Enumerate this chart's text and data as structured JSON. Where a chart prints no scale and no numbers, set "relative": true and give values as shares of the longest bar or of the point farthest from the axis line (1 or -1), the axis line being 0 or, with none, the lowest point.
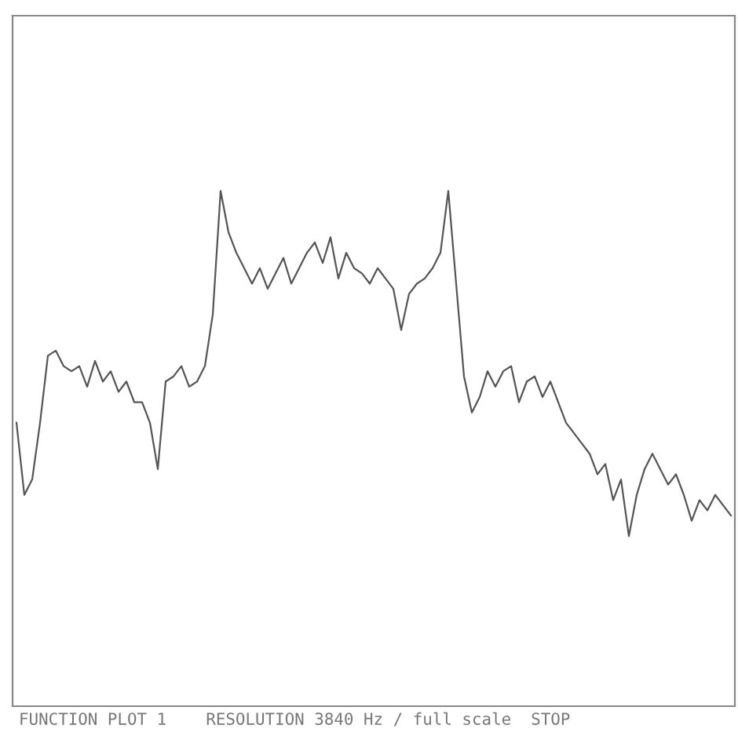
{
  "chart_data": {
    "type": "line",
    "relative": true,
    "legend": false,
    "annotations": [
      "FUNCTION PLOT 1    RESOLUTION 3840 Hz / full scale  STOP"
    ],
    "categories": [
      null,
      null,
      null,
      null,
      null,
      null,
      null,
      null,
      null,
      null,
      null,
      null,
      null,
      null,
      null,
      null,
      null,
      null,
      null,
      null,
      null,
      null,
      null,
      null,
      null,
      null,
      null,
      null,
      null,
      null,
      null,
      null,
      null,
      null,
      null,
      null,
      null,
      null,
      null,
      null,
      null,
      null,
      null,
      null,
      null,
      null,
      null,
      null,
      null,
      null,
      null,
      null,
      null,
      null,
      null,
      null,
      null,
      null,
      null,
      null,
      null,
      null,
      null,
      null,
      null,
      null,
      null,
      null,
      null,
      null,
      null,
      null,
      null,
      null,
      null,
      null,
      null,
      null,
      null,
      null,
      null,
      null,
      null,
      null,
      null,
      null,
      null,
      null,
      null,
      null,
      null,
      null
    ],
    "series": [
      {
        "color": "#555555",
        "values": [
          0.55,
          0.41,
          0.44,
          0.55,
          0.68,
          0.69,
          0.66,
          0.65,
          0.66,
          0.62,
          0.67,
          0.63,
          0.65,
          0.61,
          0.63,
          0.59,
          0.59,
          0.55,
          0.46,
          0.63,
          0.64,
          0.66,
          0.62,
          0.63,
          0.66,
          0.76,
          1,
          0.92,
          0.88,
          0.85,
          0.82,
          0.85,
          0.81,
          0.84,
          0.87,
          0.82,
          0.85,
          0.88,
          0.9,
          0.86,
          0.91,
          0.83,
          0.88,
          0.85,
          0.84,
          0.82,
          0.85,
          0.83,
          0.81,
          0.73,
          0.8,
          0.82,
          0.83,
          0.85,
          0.88,
          1,
          0.82,
          0.64,
          0.57,
          0.6,
          0.65,
          0.62,
          0.65,
          0.66,
          0.59,
          0.63,
          0.64,
          0.6,
          0.63,
          0.59,
          0.55,
          0.53,
          0.51,
          0.49,
          0.45,
          0.47,
          0.4,
          0.44,
          0.33,
          0.41,
          0.46,
          0.49,
          0.46,
          0.43,
          0.45,
          0.41,
          0.36,
          0.4,
          0.38,
          0.41,
          0.39,
          0.37
        ]
      }
    ]
  }
}
